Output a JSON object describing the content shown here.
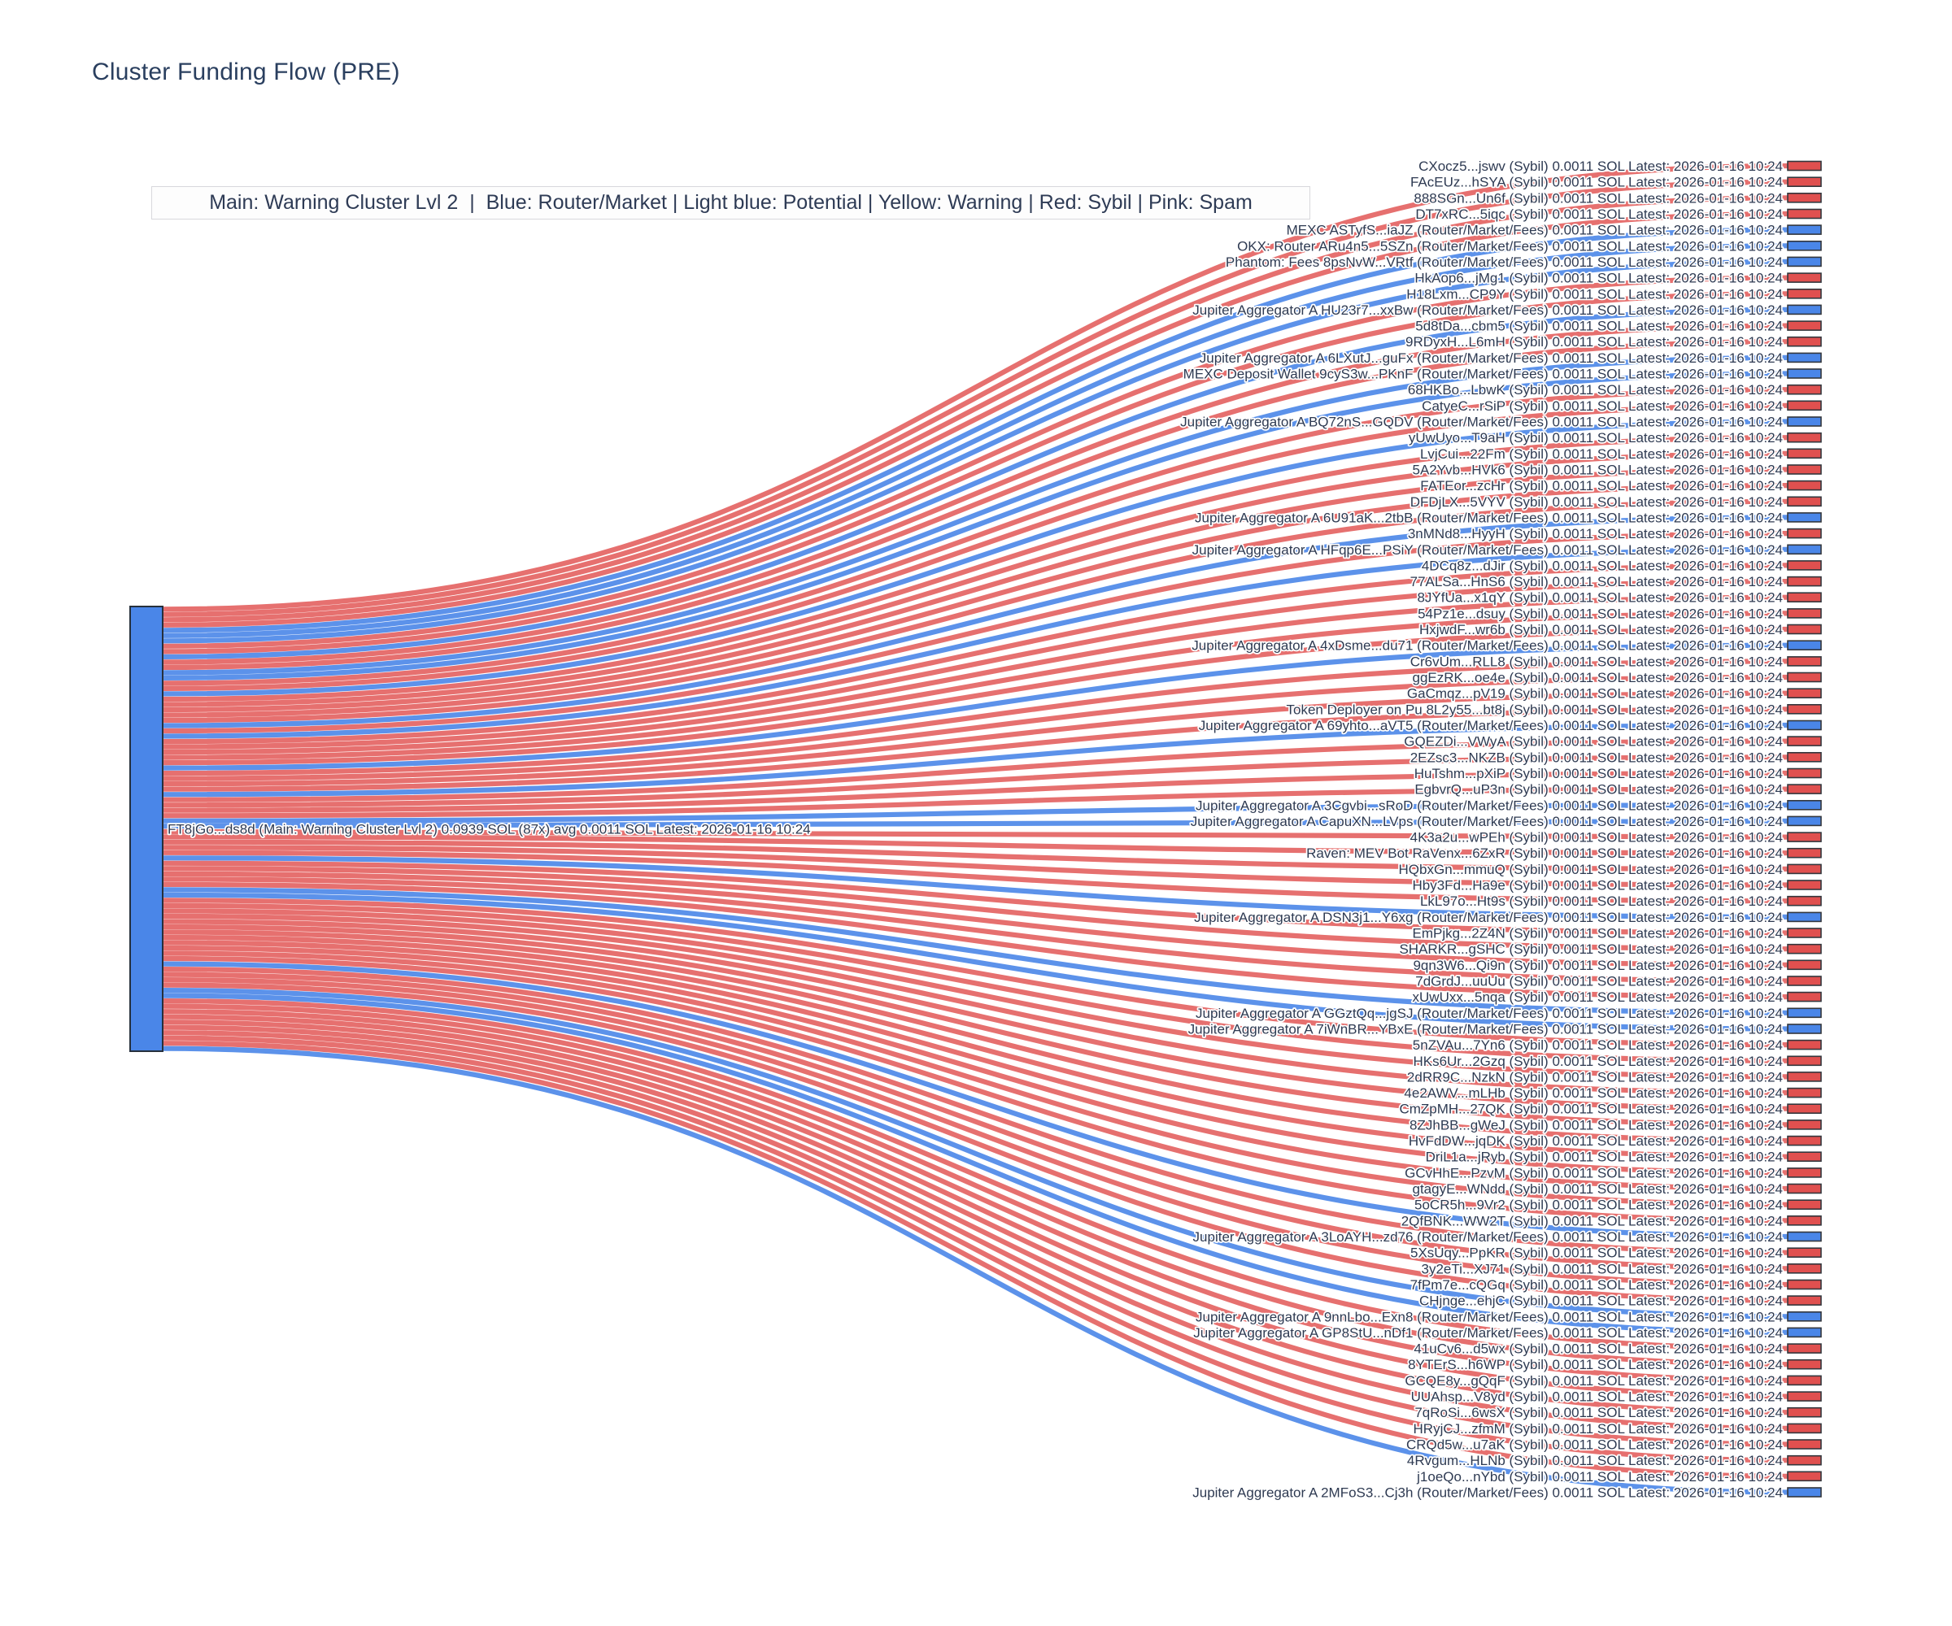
{
  "header": {
    "title": "Cluster Funding Flow (PRE)"
  },
  "legend": {
    "text": "Main: Warning Cluster Lvl 2  |  Blue: Router/Market | Light blue: Potential | Yellow: Warning | Red: Sybil | Pink: Spam"
  },
  "chart_data": {
    "type": "sankey",
    "title": "Cluster Funding Flow (PRE)",
    "legend_text": "Main: Warning Cluster Lvl 2  |  Blue: Router/Market | Light blue: Potential | Yellow: Warning | Red: Sybil | Pink: Spam",
    "source_node": {
      "label": "FT8jGo...ds8d (Main: Warning Cluster Lvl 2) 0.0939 SOL (87x) avg 0.0011 SOL Latest: 2026-01-16 10:24",
      "wallet": "FT8jGo...ds8d",
      "cluster": "Main: Warning Cluster Lvl 2",
      "total": "0.0939 SOL",
      "tx_count": "87x",
      "avg": "avg 0.0011 SOL",
      "latest": "Latest: 2026-01-16 10:24"
    },
    "link_suffix": " 0.0011 SOL Latest: 2026-01-16 10:24",
    "per_link_value_sol": 0.0011,
    "colors": {
      "sybil": "#e0504f",
      "router": "#4a86e8",
      "source_node": "#4a86e8",
      "node_border": "#33373d",
      "label_text": "#2e3a52",
      "title_text": "#2a3f5f"
    },
    "links": [
      {
        "name": "CXocz5...jswv (Sybil)",
        "type": "sybil"
      },
      {
        "name": "FAcEUz...hSYA (Sybil)",
        "type": "sybil"
      },
      {
        "name": "888SGn...Un6f (Sybil)",
        "type": "sybil"
      },
      {
        "name": "DT7xRC...5iqc (Sybil)",
        "type": "sybil"
      },
      {
        "name": "MEXC ASTyfS...iaJZ (Router/Market/Fees)",
        "type": "router"
      },
      {
        "name": "OKX: Router ARu4n5...5SZn (Router/Market/Fees)",
        "type": "router"
      },
      {
        "name": "Phantom: Fees 8psNvW...VRtf (Router/Market/Fees)",
        "type": "router"
      },
      {
        "name": "HkAop6...jMg1 (Sybil)",
        "type": "sybil"
      },
      {
        "name": "H18Lxm...CP9Y (Sybil)",
        "type": "sybil"
      },
      {
        "name": "Jupiter Aggregator A HU23r7...xxBw (Router/Market/Fees)",
        "type": "router"
      },
      {
        "name": "5d8tDa...cbm5 (Sybil)",
        "type": "sybil"
      },
      {
        "name": "9RDyxH...L6mH (Sybil)",
        "type": "sybil"
      },
      {
        "name": "Jupiter Aggregator A 6LXutJ...guFx (Router/Market/Fees)",
        "type": "router"
      },
      {
        "name": "MEXC Deposit Wallet 9cyS3w...PKnF (Router/Market/Fees)",
        "type": "router"
      },
      {
        "name": "68HKBo...LbwK (Sybil)",
        "type": "sybil"
      },
      {
        "name": "CatyeC...rSiP (Sybil)",
        "type": "sybil"
      },
      {
        "name": "Jupiter Aggregator A BQ72nS...GQDV (Router/Market/Fees)",
        "type": "router"
      },
      {
        "name": "yUwUyo...T9aH (Sybil)",
        "type": "sybil"
      },
      {
        "name": "LvjCui...22Fm (Sybil)",
        "type": "sybil"
      },
      {
        "name": "5A2Yvb...HVk6 (Sybil)",
        "type": "sybil"
      },
      {
        "name": "FATEor...zcHr (Sybil)",
        "type": "sybil"
      },
      {
        "name": "DFDjLX...5VYV (Sybil)",
        "type": "sybil"
      },
      {
        "name": "Jupiter Aggregator A 6U91aK...2tbB (Router/Market/Fees)",
        "type": "router"
      },
      {
        "name": "3nMNd8...HyyH (Sybil)",
        "type": "sybil"
      },
      {
        "name": "Jupiter Aggregator A HFqp6E...PSiY (Router/Market/Fees)",
        "type": "router"
      },
      {
        "name": "4DCq8z...dJir (Sybil)",
        "type": "sybil"
      },
      {
        "name": "77ALSa...HnS6 (Sybil)",
        "type": "sybil"
      },
      {
        "name": "8JYfUa...x1qY (Sybil)",
        "type": "sybil"
      },
      {
        "name": "54Pz1e...dsuy (Sybil)",
        "type": "sybil"
      },
      {
        "name": "HxjwdF...wr6b (Sybil)",
        "type": "sybil"
      },
      {
        "name": "Jupiter Aggregator A 4xDsme...du71 (Router/Market/Fees)",
        "type": "router"
      },
      {
        "name": "Cr6vUm...RLL8 (Sybil)",
        "type": "sybil"
      },
      {
        "name": "ggEzRK...oe4e (Sybil)",
        "type": "sybil"
      },
      {
        "name": "GaCmqz...pV19 (Sybil)",
        "type": "sybil"
      },
      {
        "name": "Token Deployer on Pu 8L2y55...bt8j (Sybil)",
        "type": "sybil"
      },
      {
        "name": "Jupiter Aggregator A 69yhto...aVT5 (Router/Market/Fees)",
        "type": "router"
      },
      {
        "name": "GQEZDi...VWyA (Sybil)",
        "type": "sybil"
      },
      {
        "name": "2EZsc3...NKZB (Sybil)",
        "type": "sybil"
      },
      {
        "name": "HuTshm...pXiP (Sybil)",
        "type": "sybil"
      },
      {
        "name": "EgbvrQ...uP3n (Sybil)",
        "type": "sybil"
      },
      {
        "name": "Jupiter Aggregator A 3Cgvbi...sRoD (Router/Market/Fees)",
        "type": "router"
      },
      {
        "name": "Jupiter Aggregator A CapuXN...LVps (Router/Market/Fees)",
        "type": "router"
      },
      {
        "name": "4K3a2u...wPEh (Sybil)",
        "type": "sybil"
      },
      {
        "name": "Raven: MEV Bot RaVenx...6ZxR (Sybil)",
        "type": "sybil"
      },
      {
        "name": "HQbxGn...mmuQ (Sybil)",
        "type": "sybil"
      },
      {
        "name": "Hby3Fd...Ha9e (Sybil)",
        "type": "sybil"
      },
      {
        "name": "LkL97o...Ht9s (Sybil)",
        "type": "sybil"
      },
      {
        "name": "Jupiter Aggregator A DSN3j1...Y6xg (Router/Market/Fees)",
        "type": "router"
      },
      {
        "name": "EmPjkg...2Z4N (Sybil)",
        "type": "sybil"
      },
      {
        "name": "SHARKR...gSHC (Sybil)",
        "type": "sybil"
      },
      {
        "name": "9qn3W6...Qi9n (Sybil)",
        "type": "sybil"
      },
      {
        "name": "7dGrdJ...uuUu (Sybil)",
        "type": "sybil"
      },
      {
        "name": "xUwUxx...5nqa (Sybil)",
        "type": "sybil"
      },
      {
        "name": "Jupiter Aggregator A GGztQq...jgSJ (Router/Market/Fees)",
        "type": "router"
      },
      {
        "name": "Jupiter Aggregator A 7iWnBR...YBxE (Router/Market/Fees)",
        "type": "router"
      },
      {
        "name": "5nZVAu...7Yn6 (Sybil)",
        "type": "sybil"
      },
      {
        "name": "HKs6Ur...2Gzq (Sybil)",
        "type": "sybil"
      },
      {
        "name": "2dRR9C...NzkN (Sybil)",
        "type": "sybil"
      },
      {
        "name": "4e2AWV...mLHb (Sybil)",
        "type": "sybil"
      },
      {
        "name": "CmZpMH...27QK (Sybil)",
        "type": "sybil"
      },
      {
        "name": "8ZJhBB...gWeJ (Sybil)",
        "type": "sybil"
      },
      {
        "name": "HvFdDW...jqDK (Sybil)",
        "type": "sybil"
      },
      {
        "name": "DriL1a...jRyb (Sybil)",
        "type": "sybil"
      },
      {
        "name": "GCvHhE...PzvM (Sybil)",
        "type": "sybil"
      },
      {
        "name": "gtagyE...WNdd (Sybil)",
        "type": "sybil"
      },
      {
        "name": "5oCR5h...9Vr2 (Sybil)",
        "type": "sybil"
      },
      {
        "name": "2QfBNK...WW2T (Sybil)",
        "type": "sybil"
      },
      {
        "name": "Jupiter Aggregator A 3LoAYH...zd76 (Router/Market/Fees)",
        "type": "router"
      },
      {
        "name": "5XsUqy...PpKR (Sybil)",
        "type": "sybil"
      },
      {
        "name": "3y2eTi...XJ71 (Sybil)",
        "type": "sybil"
      },
      {
        "name": "7fPm7e...cQGq (Sybil)",
        "type": "sybil"
      },
      {
        "name": "CHjnge...ehjC (Sybil)",
        "type": "sybil"
      },
      {
        "name": "Jupiter Aggregator A 9nnLbo...Exn8 (Router/Market/Fees)",
        "type": "router"
      },
      {
        "name": "Jupiter Aggregator A GP8StU...nDf1 (Router/Market/Fees)",
        "type": "router"
      },
      {
        "name": "41uCv6...d5wx (Sybil)",
        "type": "sybil"
      },
      {
        "name": "8YTErS...h6WP (Sybil)",
        "type": "sybil"
      },
      {
        "name": "GCQE8y...gQqF (Sybil)",
        "type": "sybil"
      },
      {
        "name": "UUAhsp...V8yd (Sybil)",
        "type": "sybil"
      },
      {
        "name": "7qRoSi...6wsX (Sybil)",
        "type": "sybil"
      },
      {
        "name": "HRyjCJ...zfmM (Sybil)",
        "type": "sybil"
      },
      {
        "name": "CRQd5w...u7aK (Sybil)",
        "type": "sybil"
      },
      {
        "name": "4Rvgum...HLNb (Sybil)",
        "type": "sybil"
      },
      {
        "name": "j1oeQo...nYbd (Sybil)",
        "type": "sybil"
      },
      {
        "name": "Jupiter Aggregator A 2MFoS3...Cj3h (Router/Market/Fees)",
        "type": "router"
      }
    ]
  }
}
